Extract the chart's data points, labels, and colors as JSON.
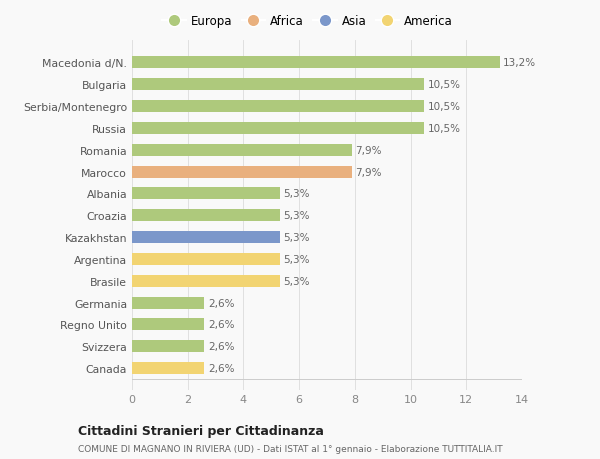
{
  "categories": [
    "Macedonia d/N.",
    "Bulgaria",
    "Serbia/Montenegro",
    "Russia",
    "Romania",
    "Marocco",
    "Albania",
    "Croazia",
    "Kazakhstan",
    "Argentina",
    "Brasile",
    "Germania",
    "Regno Unito",
    "Svizzera",
    "Canada"
  ],
  "values": [
    13.2,
    10.5,
    10.5,
    10.5,
    7.9,
    7.9,
    5.3,
    5.3,
    5.3,
    5.3,
    5.3,
    2.6,
    2.6,
    2.6,
    2.6
  ],
  "labels": [
    "13,2%",
    "10,5%",
    "10,5%",
    "10,5%",
    "7,9%",
    "7,9%",
    "5,3%",
    "5,3%",
    "5,3%",
    "5,3%",
    "5,3%",
    "2,6%",
    "2,6%",
    "2,6%",
    "2,6%"
  ],
  "colors": [
    "#aec97c",
    "#aec97c",
    "#aec97c",
    "#aec97c",
    "#aec97c",
    "#e9b07e",
    "#aec97c",
    "#aec97c",
    "#7b97ca",
    "#f2d472",
    "#f2d472",
    "#aec97c",
    "#aec97c",
    "#aec97c",
    "#f2d472"
  ],
  "legend_labels": [
    "Europa",
    "Africa",
    "Asia",
    "America"
  ],
  "legend_colors": [
    "#aec97c",
    "#e9b07e",
    "#7b97ca",
    "#f2d472"
  ],
  "xlim": [
    0,
    14
  ],
  "xticks": [
    0,
    2,
    4,
    6,
    8,
    10,
    12,
    14
  ],
  "title1": "Cittadini Stranieri per Cittadinanza",
  "title2": "COMUNE DI MAGNANO IN RIVIERA (UD) - Dati ISTAT al 1° gennaio - Elaborazione TUTTITALIA.IT",
  "bg_color": "#f9f9f9",
  "grid_color": "#e0e0e0"
}
